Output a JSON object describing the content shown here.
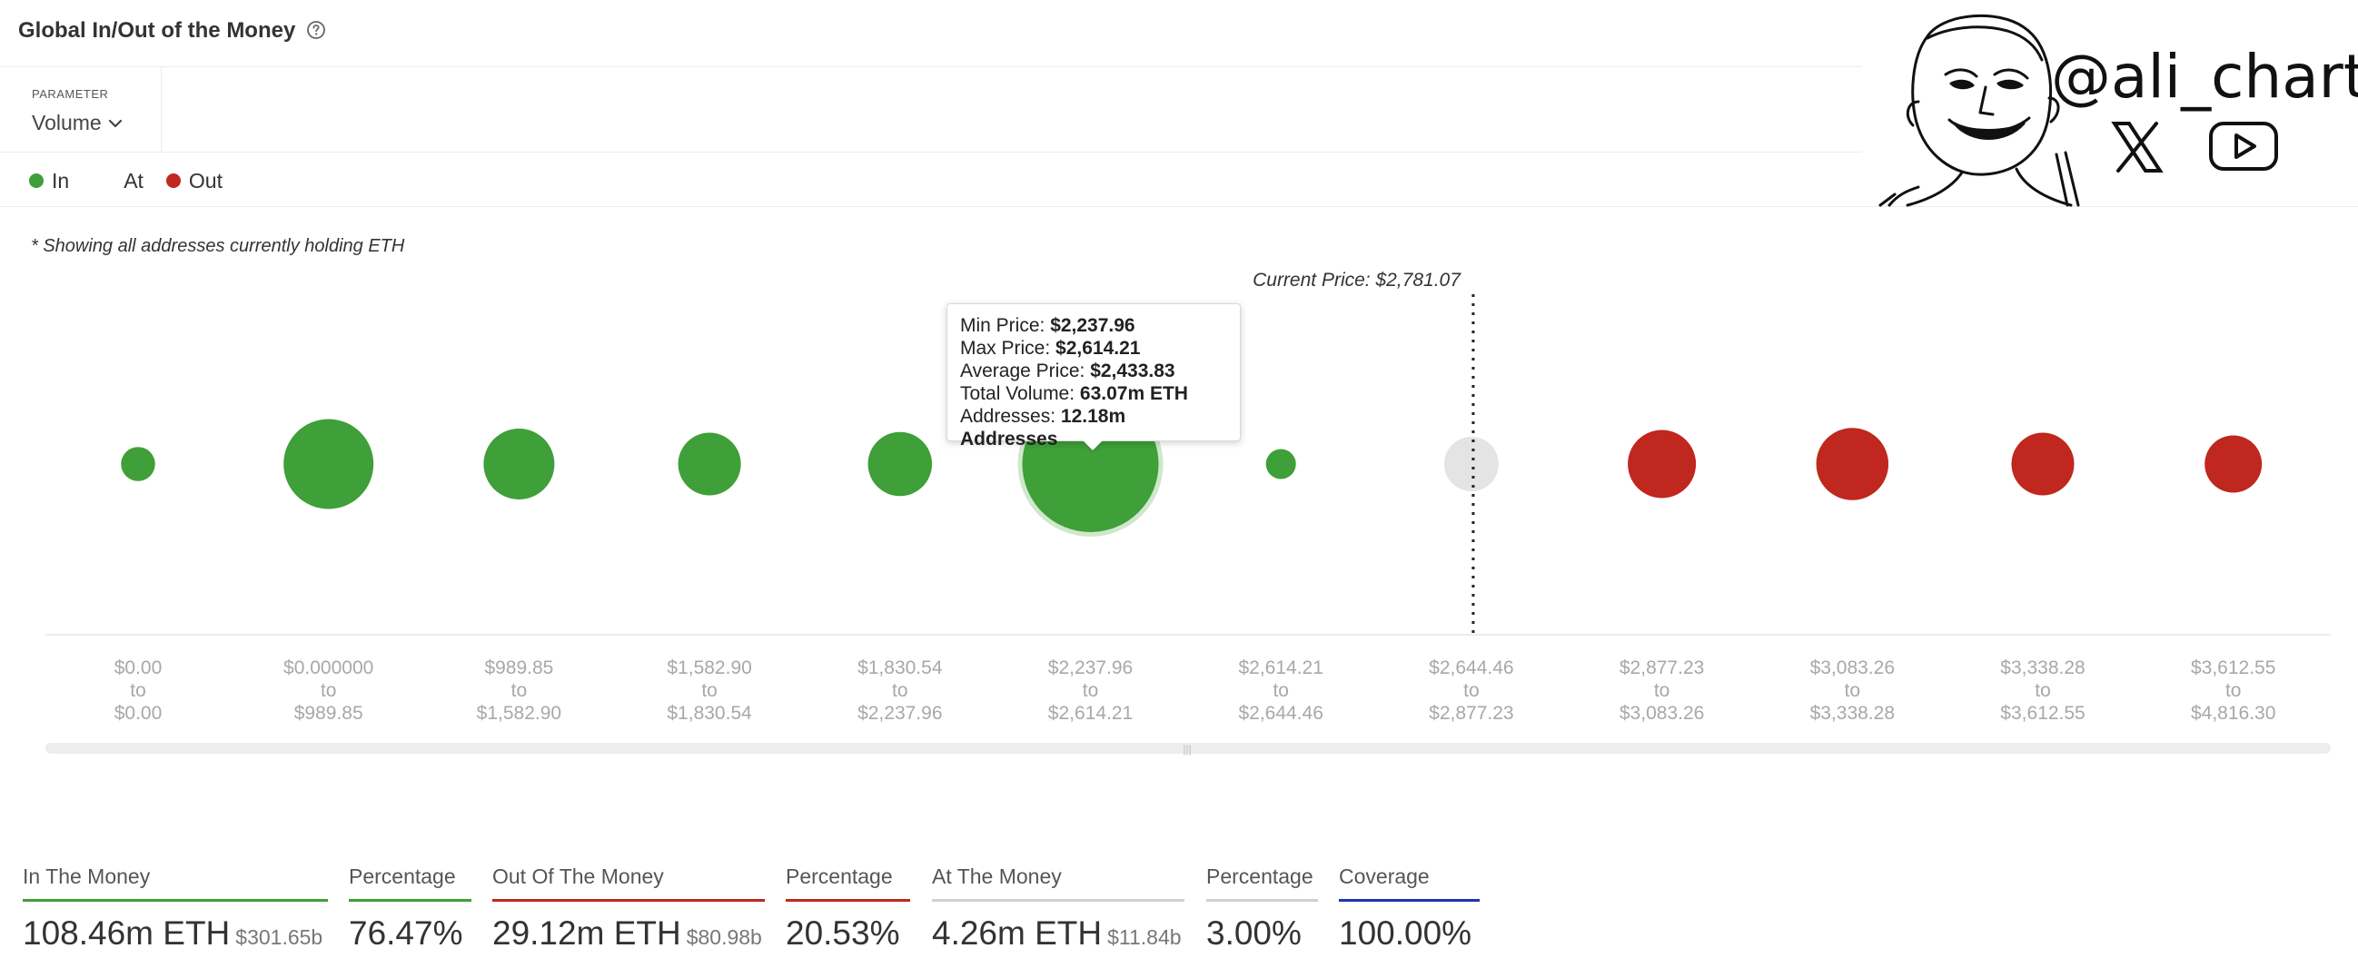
{
  "header": {
    "title": "Global In/Out of the Money",
    "help_icon": "question-circle-icon"
  },
  "parameter": {
    "label": "PARAMETER",
    "value": "Volume"
  },
  "legend": {
    "items": [
      {
        "label": "In",
        "color": "#3f9f38"
      },
      {
        "label": "At",
        "color": ""
      },
      {
        "label": "Out",
        "color": "#c0271f"
      }
    ]
  },
  "note": "* Showing all addresses currently holding ETH",
  "branding": {
    "handle": "@ali_charts",
    "icons": [
      "cartoon-face-logo",
      "x-logo-icon",
      "youtube-icon"
    ]
  },
  "chart_data": {
    "type": "scatter",
    "current_price_label": "Current Price: $2,781.07",
    "current_price": 2781.07,
    "series": [
      {
        "name": "In",
        "color": "#3f9f38"
      },
      {
        "name": "At",
        "color": "#e4e4e4"
      },
      {
        "name": "Out",
        "color": "#c0271f"
      }
    ],
    "bins": [
      {
        "from": "$0.00",
        "to": "$0.00",
        "status": "In",
        "size": 0.25
      },
      {
        "from": "$0.000000",
        "to": "$989.85",
        "status": "In",
        "size": 0.66
      },
      {
        "from": "$989.85",
        "to": "$1,582.90",
        "status": "In",
        "size": 0.52
      },
      {
        "from": "$1,582.90",
        "to": "$1,830.54",
        "status": "In",
        "size": 0.46
      },
      {
        "from": "$1,830.54",
        "to": "$2,237.96",
        "status": "In",
        "size": 0.47
      },
      {
        "from": "$2,237.96",
        "to": "$2,614.21",
        "status": "In",
        "size": 1.0
      },
      {
        "from": "$2,614.21",
        "to": "$2,644.46",
        "status": "In",
        "size": 0.22
      },
      {
        "from": "$2,644.46",
        "to": "$2,877.23",
        "status": "At",
        "size": 0.4
      },
      {
        "from": "$2,877.23",
        "to": "$3,083.26",
        "status": "Out",
        "size": 0.5
      },
      {
        "from": "$3,083.26",
        "to": "$3,338.28",
        "status": "Out",
        "size": 0.53
      },
      {
        "from": "$3,338.28",
        "to": "$3,612.55",
        "status": "Out",
        "size": 0.46
      },
      {
        "from": "$3,612.55",
        "to": "$4,816.30",
        "status": "Out",
        "size": 0.42
      }
    ],
    "tick_to_word": "to",
    "tooltip": {
      "bin_index": 5,
      "rows": [
        {
          "label": "Min Price: ",
          "value": "$2,237.96"
        },
        {
          "label": "Max Price: ",
          "value": "$2,614.21"
        },
        {
          "label": "Average Price: ",
          "value": "$2,433.83"
        },
        {
          "label": "Total Volume: ",
          "value": "63.07m ETH"
        },
        {
          "label": "Addresses: ",
          "value": "12.18m Addresses"
        }
      ]
    }
  },
  "stats": [
    {
      "label": "In The Money",
      "value": "108.46m ETH",
      "sub": "$301.65b",
      "color": "#3f9f38"
    },
    {
      "label": "Percentage",
      "value": "76.47%",
      "sub": "",
      "color": "#3f9f38"
    },
    {
      "label": "Out Of The Money",
      "value": "29.12m ETH",
      "sub": "$80.98b",
      "color": "#c0271f"
    },
    {
      "label": "Percentage",
      "value": "20.53%",
      "sub": "",
      "color": "#c0271f"
    },
    {
      "label": "At The Money",
      "value": "4.26m ETH",
      "sub": "$11.84b",
      "color": "#d0d0d0"
    },
    {
      "label": "Percentage",
      "value": "3.00%",
      "sub": "",
      "color": "#d0d0d0"
    },
    {
      "label": "Coverage",
      "value": "100.00%",
      "sub": "",
      "color": "#2431b5"
    }
  ]
}
